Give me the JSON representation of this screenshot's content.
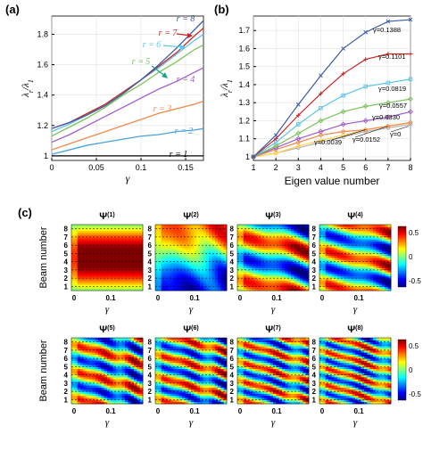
{
  "panel_labels": [
    "(a)",
    "(b)",
    "(c)"
  ],
  "colors": {
    "r1": "#000000",
    "r2": "#4aa3df",
    "r3": "#f08a4b",
    "r4": "#a05cc8",
    "r5": "#7cc35a",
    "r6": "#5ec4e8",
    "r7": "#c62828",
    "r8": "#3b5ba5",
    "g0": "#b0b0b0",
    "g1": "#ffd24a",
    "g2": "#f08a4b",
    "g3": "#a05cc8",
    "g4": "#7cc35a",
    "g5": "#5ec4e8",
    "g6": "#c62828",
    "g7": "#3b5ba5"
  },
  "chart_data": [
    {
      "id": "a",
      "type": "line",
      "xlabel": "γ",
      "ylabel": "λr/λ1",
      "xlim": [
        0,
        0.17
      ],
      "ylim": [
        0.97,
        1.92
      ],
      "xticks": [
        "0",
        "0.05",
        "0.1",
        "0.15"
      ],
      "yticks": [
        "1",
        "1.2",
        "1.4",
        "1.6",
        "1.8"
      ],
      "x": [
        0,
        0.02,
        0.04,
        0.06,
        0.08,
        0.1,
        0.12,
        0.14,
        0.16,
        0.17
      ],
      "series": [
        {
          "name": "r = 1",
          "values": [
            1,
            1,
            1,
            1,
            1,
            1,
            1,
            1,
            1,
            1
          ]
        },
        {
          "name": "r = 2",
          "values": [
            1.01,
            1.04,
            1.07,
            1.09,
            1.11,
            1.13,
            1.14,
            1.16,
            1.17,
            1.18
          ]
        },
        {
          "name": "r = 3",
          "values": [
            1.04,
            1.08,
            1.12,
            1.16,
            1.2,
            1.24,
            1.28,
            1.31,
            1.34,
            1.36
          ]
        },
        {
          "name": "r = 4",
          "values": [
            1.09,
            1.14,
            1.2,
            1.26,
            1.32,
            1.38,
            1.44,
            1.49,
            1.55,
            1.58
          ]
        },
        {
          "name": "r = 5",
          "values": [
            1.13,
            1.19,
            1.25,
            1.32,
            1.4,
            1.47,
            1.55,
            1.62,
            1.7,
            1.73
          ]
        },
        {
          "name": "r = 6",
          "values": [
            1.16,
            1.21,
            1.27,
            1.34,
            1.42,
            1.5,
            1.58,
            1.67,
            1.76,
            1.8
          ]
        },
        {
          "name": "r = 7",
          "values": [
            1.18,
            1.22,
            1.28,
            1.34,
            1.42,
            1.5,
            1.59,
            1.68,
            1.79,
            1.84
          ]
        },
        {
          "name": "r = 8",
          "values": [
            1.18,
            1.22,
            1.27,
            1.33,
            1.41,
            1.5,
            1.6,
            1.71,
            1.83,
            1.89
          ]
        }
      ]
    },
    {
      "id": "b",
      "type": "line",
      "xlabel": "Eigen value number",
      "ylabel": "λr/λ1",
      "xlim": [
        1,
        8
      ],
      "ylim": [
        0.98,
        1.78
      ],
      "xticks": [
        "1",
        "2",
        "3",
        "4",
        "5",
        "6",
        "7",
        "8"
      ],
      "yticks": [
        "1",
        "1.1",
        "1.2",
        "1.3",
        "1.4",
        "1.5",
        "1.6",
        "1.7"
      ],
      "x": [
        1,
        2,
        3,
        4,
        5,
        6,
        7,
        8
      ],
      "series": [
        {
          "name": "γ=0",
          "values": [
            1,
            1.02,
            1.05,
            1.08,
            1.11,
            1.14,
            1.16,
            1.18
          ]
        },
        {
          "name": "γ=0.0039",
          "values": [
            1,
            1.02,
            1.06,
            1.09,
            1.12,
            1.15,
            1.17,
            1.19
          ]
        },
        {
          "name": "γ=0.0152",
          "values": [
            1,
            1.04,
            1.08,
            1.12,
            1.14,
            1.15,
            1.17,
            1.19
          ]
        },
        {
          "name": "γ=0.0330",
          "values": [
            1,
            1.05,
            1.1,
            1.14,
            1.18,
            1.2,
            1.22,
            1.25
          ]
        },
        {
          "name": "γ=0.0557",
          "values": [
            1,
            1.06,
            1.13,
            1.2,
            1.25,
            1.28,
            1.3,
            1.32
          ]
        },
        {
          "name": "γ=0.0819",
          "values": [
            1,
            1.08,
            1.18,
            1.27,
            1.34,
            1.39,
            1.41,
            1.43
          ]
        },
        {
          "name": "γ=0.1101",
          "values": [
            1,
            1.1,
            1.23,
            1.35,
            1.46,
            1.54,
            1.57,
            1.57
          ]
        },
        {
          "name": "γ=0.1388",
          "values": [
            1,
            1.12,
            1.29,
            1.45,
            1.6,
            1.69,
            1.75,
            1.76
          ]
        }
      ]
    },
    {
      "id": "c",
      "type": "heatmap",
      "ylabel": "Beam number",
      "xlabel": "γ",
      "xticks": [
        "0",
        "0.1"
      ],
      "yticks": [
        "1",
        "2",
        "3",
        "4",
        "5",
        "6",
        "7",
        "8"
      ],
      "colorbar_ticks": [
        "0.5",
        "0",
        "-0.5"
      ],
      "panels": [
        {
          "title": "Ψ(1)",
          "mode": 1
        },
        {
          "title": "Ψ(2)",
          "mode": 2
        },
        {
          "title": "Ψ(3)",
          "mode": 3
        },
        {
          "title": "Ψ(4)",
          "mode": 4
        },
        {
          "title": "Ψ(5)",
          "mode": 5
        },
        {
          "title": "Ψ(6)",
          "mode": 6
        },
        {
          "title": "Ψ(7)",
          "mode": 7
        },
        {
          "title": "Ψ(8)",
          "mode": 8
        }
      ]
    }
  ]
}
